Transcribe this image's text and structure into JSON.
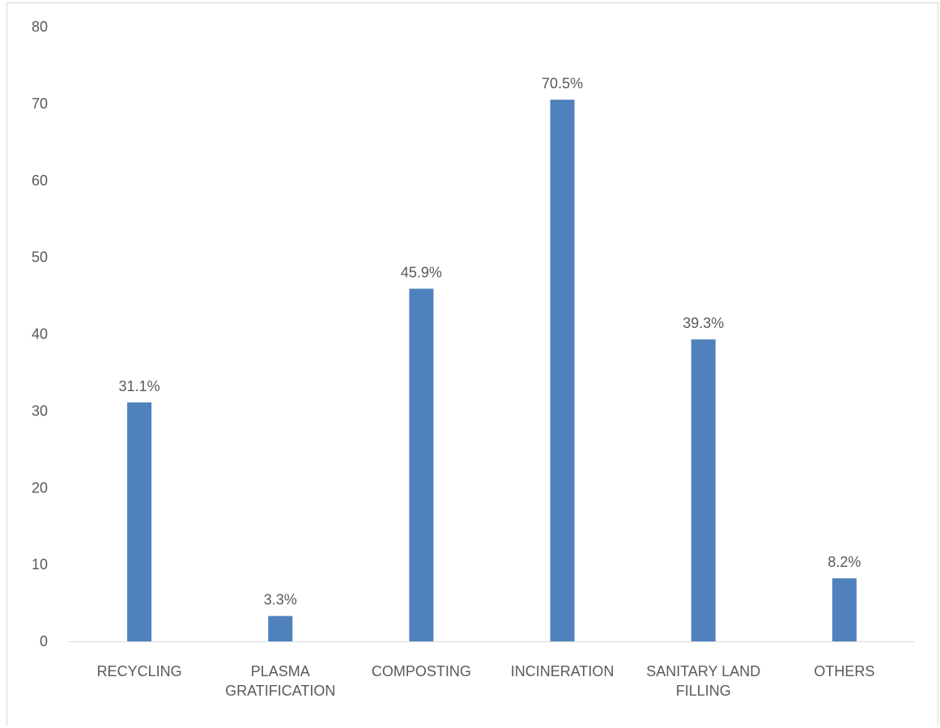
{
  "chart_data": {
    "type": "bar",
    "categories": [
      [
        "RECYCLING"
      ],
      [
        "PLASMA",
        "GRATIFICATION"
      ],
      [
        "COMPOSTING"
      ],
      [
        "INCINERATION"
      ],
      [
        "SANITARY LAND",
        "FILLING"
      ],
      [
        "OTHERS"
      ]
    ],
    "values": [
      31.1,
      3.3,
      45.9,
      70.5,
      39.3,
      8.2
    ],
    "data_labels": [
      "31.1%",
      "3.3%",
      "45.9%",
      "70.5%",
      "39.3%",
      "8.2%"
    ],
    "ylim": [
      0,
      80
    ],
    "yticks": [
      0,
      10,
      20,
      30,
      40,
      50,
      60,
      70,
      80
    ],
    "title": "",
    "xlabel": "",
    "ylabel": "",
    "grid": false,
    "legend": "none",
    "bar_color": "#4f81bd",
    "axis_color": "#d9d9d9",
    "text_color": "#595959"
  }
}
